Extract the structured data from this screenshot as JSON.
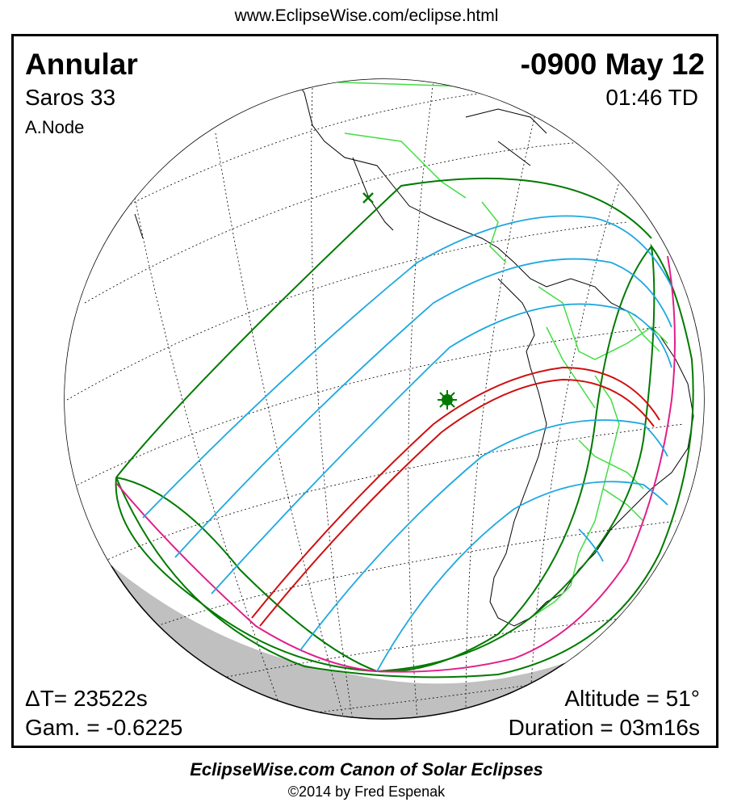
{
  "header": {
    "url": "www.EclipseWise.com/eclipse.html"
  },
  "eclipse": {
    "type": "Annular",
    "saros": "Saros  33",
    "node": "A.Node",
    "date": "-0900 May 12",
    "time": "01:46 TD",
    "delta_t": "ΔT=  23522s",
    "gamma": "Gam. = -0.6225",
    "altitude": "Altitude = 51°",
    "duration": "Duration = 03m16s"
  },
  "footer": {
    "canon": "EclipseWise.com Canon of Solar Eclipses",
    "copyright": "©2014 by Fred Espenak"
  },
  "colors": {
    "globe_night": "#c0c0c0",
    "graticule": "#000000",
    "coastline": "#000000",
    "borders": "#44dd44",
    "penumbra_limit": "#007a00",
    "magnitude_lines": "#1ea8e0",
    "rise_set": "#e0208a",
    "central_path": "#d01010",
    "greatest_eclipse": "#007a00"
  },
  "map": {
    "projection": "orthographic",
    "greatest_eclipse_marker": "asterisk",
    "sub_solar_marker": "x"
  }
}
